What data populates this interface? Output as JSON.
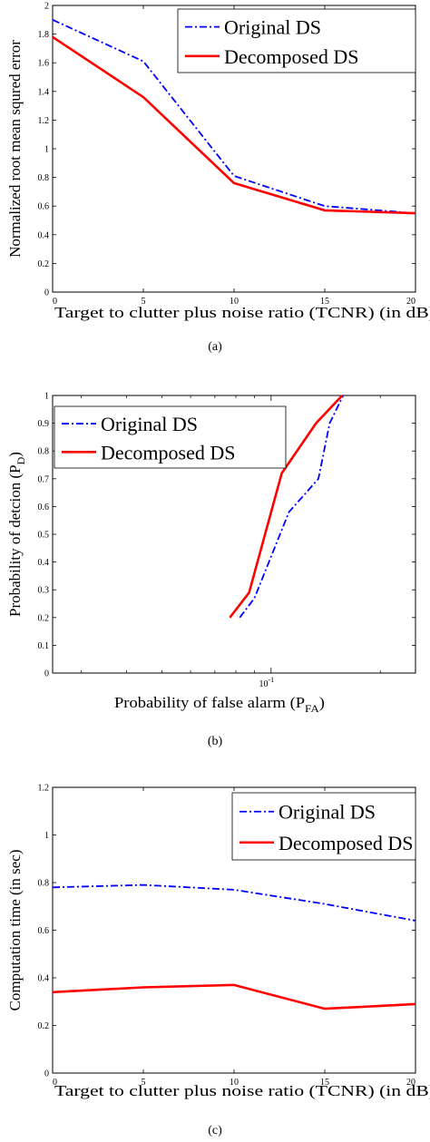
{
  "chart_data": [
    {
      "type": "line",
      "caption": "(a)",
      "xlabel": "Target to clutter plus noise ratio (TCNR) (in dB)",
      "ylabel": "Normalized root mean squred error",
      "xlim": [
        0,
        20
      ],
      "ylim": [
        0,
        2
      ],
      "xticks": [
        "0",
        "5",
        "10",
        "15",
        "20"
      ],
      "yticks": [
        "0",
        "0.2",
        "0.4",
        "0.6",
        "0.8",
        "1",
        "1.2",
        "1.4",
        "1.6",
        "1.8",
        "2"
      ],
      "legend_position": "top-right",
      "series": [
        {
          "name": "Original DS",
          "style": "dashdot",
          "color": "#0000ff",
          "x": [
            0,
            5,
            10,
            15,
            20
          ],
          "y": [
            1.9,
            1.61,
            0.81,
            0.6,
            0.55
          ]
        },
        {
          "name": "Decomposed DS",
          "style": "solid",
          "color": "#ff0000",
          "x": [
            0,
            5,
            10,
            15,
            20
          ],
          "y": [
            1.78,
            1.36,
            0.76,
            0.57,
            0.55
          ]
        }
      ]
    },
    {
      "type": "line",
      "caption": "(b)",
      "xlabel": "Probability of false alarm (P",
      "xlabel_sub": "FA",
      "xlabel_end": ")",
      "ylabel": "Probability of detcion (P",
      "ylabel_sub": "D",
      "ylabel_end": ")",
      "xscale": "log",
      "xlim": [
        0.025,
        0.25
      ],
      "ylim": [
        0,
        1
      ],
      "xtick_label_base": "10",
      "xtick_label_exp": "-1",
      "yticks": [
        "0",
        "0.1",
        "0.2",
        "0.3",
        "0.4",
        "0.5",
        "0.6",
        "0.7",
        "0.8",
        "0.9",
        "1"
      ],
      "legend_position": "top-left",
      "series": [
        {
          "name": "Original DS",
          "style": "dashdot",
          "color": "#0000ff",
          "x": [
            0.082,
            0.09,
            0.112,
            0.135,
            0.145,
            0.158
          ],
          "y": [
            0.2,
            0.27,
            0.58,
            0.7,
            0.9,
            1.0
          ]
        },
        {
          "name": "Decomposed DS",
          "style": "solid",
          "color": "#ff0000",
          "x": [
            0.077,
            0.087,
            0.107,
            0.133,
            0.157
          ],
          "y": [
            0.2,
            0.29,
            0.72,
            0.9,
            1.0
          ]
        }
      ]
    },
    {
      "type": "line",
      "caption": "(c)",
      "xlabel": "Target to clutter plus noise ratio (TCNR) (in dB)",
      "ylabel": "Computation time (in sec)",
      "xlim": [
        0,
        20
      ],
      "ylim": [
        0,
        1.2
      ],
      "xticks": [
        "0",
        "5",
        "10",
        "15",
        "20"
      ],
      "yticks": [
        "0",
        "0.2",
        "0.4",
        "0.6",
        "0.8",
        "1",
        "1.2"
      ],
      "legend_position": "top-right",
      "series": [
        {
          "name": "Original DS",
          "style": "dashdot",
          "color": "#0000ff",
          "x": [
            0,
            5,
            10,
            15,
            20
          ],
          "y": [
            0.78,
            0.79,
            0.77,
            0.71,
            0.64
          ]
        },
        {
          "name": "Decomposed DS",
          "style": "solid",
          "color": "#ff0000",
          "x": [
            0,
            5,
            10,
            15,
            20
          ],
          "y": [
            0.34,
            0.36,
            0.37,
            0.27,
            0.29
          ]
        }
      ]
    }
  ]
}
